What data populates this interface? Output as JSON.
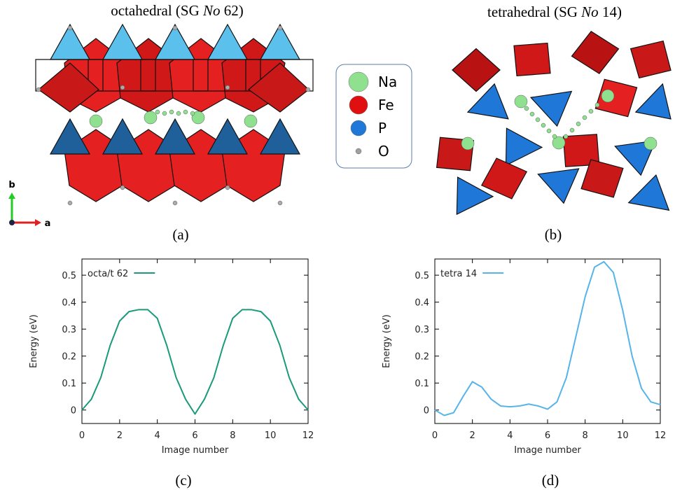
{
  "panels": [
    {
      "title": [
        "octahedral (SG ",
        "No",
        " 62)"
      ],
      "caption": "(a)",
      "axis_labels": [
        "b",
        "a"
      ]
    },
    {
      "title": [
        "tetrahedral (SG ",
        "No",
        " 14)"
      ],
      "caption": "(b)"
    }
  ],
  "legend": {
    "items": [
      {
        "label": "Na",
        "color": "#8fe08f"
      },
      {
        "label": "Fe",
        "color": "#e01010"
      },
      {
        "label": "P",
        "color": "#1f78d8"
      },
      {
        "label": "O",
        "color": "#a0a0a0"
      }
    ]
  },
  "chart_data": [
    {
      "type": "line",
      "caption": "(c)",
      "xlabel": "Image number",
      "ylabel": "Energy (eV)",
      "x": [
        0,
        0.5,
        1,
        1.5,
        2,
        2.5,
        3,
        3.5,
        4,
        4.5,
        5,
        5.5,
        6,
        6.5,
        7,
        7.5,
        8,
        8.5,
        9,
        9.5,
        10,
        10.5,
        11,
        11.5,
        12
      ],
      "series": [
        {
          "name": "octa/t 62",
          "color": "#1a9a7a",
          "values": [
            0,
            0.04,
            0.12,
            0.24,
            0.33,
            0.365,
            0.372,
            0.372,
            0.34,
            0.24,
            0.12,
            0.04,
            -0.015,
            0.04,
            0.12,
            0.24,
            0.34,
            0.372,
            0.372,
            0.365,
            0.33,
            0.24,
            0.12,
            0.04,
            0.0
          ]
        }
      ],
      "xlim": [
        0,
        12
      ],
      "xticks": [
        0,
        2,
        4,
        6,
        8,
        10,
        12
      ],
      "ylim": [
        -0.05,
        0.56
      ],
      "yticks": [
        0,
        0.1,
        0.2,
        0.3,
        0.4,
        0.5
      ],
      "legend": "top-left"
    },
    {
      "type": "line",
      "caption": "(d)",
      "xlabel": "Image number",
      "ylabel": "Energy (eV)",
      "x": [
        0,
        0.5,
        1,
        1.5,
        2,
        2.5,
        3,
        3.5,
        4,
        4.5,
        5,
        5.5,
        6,
        6.5,
        7,
        7.5,
        8,
        8.5,
        9,
        9.5,
        10,
        10.5,
        11,
        11.5,
        12
      ],
      "series": [
        {
          "name": "tetra 14",
          "color": "#56b4e9",
          "values": [
            0,
            -0.02,
            -0.01,
            0.05,
            0.105,
            0.085,
            0.04,
            0.015,
            0.012,
            0.015,
            0.022,
            0.015,
            0.003,
            0.03,
            0.12,
            0.27,
            0.42,
            0.53,
            0.55,
            0.51,
            0.37,
            0.2,
            0.08,
            0.03,
            0.02
          ]
        }
      ],
      "xlim": [
        0,
        12
      ],
      "xticks": [
        0,
        2,
        4,
        6,
        8,
        10,
        12
      ],
      "ylim": [
        -0.05,
        0.56
      ],
      "yticks": [
        0,
        0.1,
        0.2,
        0.3,
        0.4,
        0.5
      ],
      "legend": "top-left"
    }
  ]
}
